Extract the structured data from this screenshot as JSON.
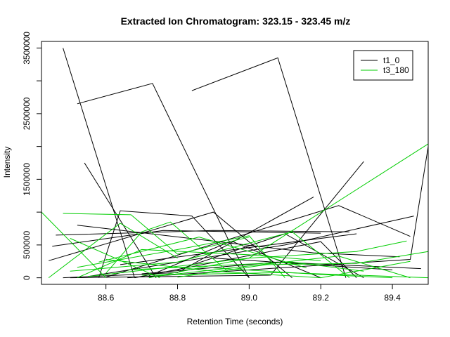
{
  "chart_data": {
    "type": "line",
    "title": "Extracted Ion Chromatogram: 323.15 - 323.45 m/z",
    "xlabel": "Retention Time (seconds)",
    "ylabel": "Intensity",
    "xlim": [
      88.42,
      89.5
    ],
    "ylim": [
      -100000,
      3600000
    ],
    "x_ticks": [
      88.6,
      88.8,
      89.0,
      89.2,
      89.4
    ],
    "x_tick_labels": [
      "88.6",
      "88.8",
      "89.0",
      "89.2",
      "89.4"
    ],
    "y_ticks": [
      0,
      500000,
      1000000,
      1500000,
      2000000,
      2500000,
      3000000,
      3500000
    ],
    "y_tick_labels": [
      "0",
      "500000",
      "",
      "1500000",
      "",
      "2500000",
      "",
      "3500000"
    ],
    "grid": false,
    "legend_position": "top-right",
    "colors": {
      "t1_0": "#000000",
      "t3_180": "#00cd00"
    },
    "series": [
      {
        "name": "t1_0",
        "segments": [
          [
            [
              88.48,
              3500000
            ],
            [
              88.68,
              0
            ]
          ],
          [
            [
              88.52,
              2650000
            ],
            [
              88.73,
              2960000
            ],
            [
              88.94,
              600000
            ],
            [
              89.0,
              0
            ]
          ],
          [
            [
              88.54,
              1750000
            ],
            [
              88.74,
              0
            ]
          ],
          [
            [
              88.84,
              2850000
            ],
            [
              89.08,
              3350000
            ],
            [
              89.27,
              0
            ]
          ],
          [
            [
              88.58,
              0
            ],
            [
              88.64,
              1020000
            ],
            [
              88.84,
              940000
            ],
            [
              89.0,
              0
            ]
          ],
          [
            [
              88.44,
              260000
            ],
            [
              88.9,
              1000000
            ],
            [
              89.12,
              0
            ]
          ],
          [
            [
              88.45,
              480000
            ],
            [
              88.76,
              720000
            ],
            [
              89.2,
              680000
            ]
          ],
          [
            [
              88.46,
              650000
            ],
            [
              88.9,
              720000
            ],
            [
              89.28,
              700000
            ]
          ],
          [
            [
              88.52,
              800000
            ],
            [
              89.18,
              380000
            ],
            [
              89.42,
              320000
            ]
          ],
          [
            [
              88.48,
              0
            ],
            [
              88.8,
              80000
            ],
            [
              89.18,
              1230000
            ]
          ],
          [
            [
              88.5,
              0
            ],
            [
              89.06,
              40000
            ],
            [
              89.32,
              1770000
            ]
          ],
          [
            [
              88.6,
              10000
            ],
            [
              89.25,
              1100000
            ],
            [
              89.45,
              630000
            ]
          ],
          [
            [
              88.68,
              0
            ],
            [
              89.2,
              550000
            ],
            [
              89.3,
              0
            ]
          ],
          [
            [
              88.72,
              30000
            ],
            [
              88.95,
              560000
            ],
            [
              89.2,
              0
            ]
          ],
          [
            [
              88.8,
              120000
            ],
            [
              89.1,
              670000
            ],
            [
              89.32,
              0
            ]
          ],
          [
            [
              88.55,
              20000
            ],
            [
              89.1,
              500000
            ],
            [
              89.46,
              940000
            ]
          ],
          [
            [
              88.64,
              200000
            ],
            [
              89.0,
              460000
            ],
            [
              89.3,
              670000
            ]
          ],
          [
            [
              88.66,
              0
            ],
            [
              89.45,
              280000
            ],
            [
              89.5,
              2000000
            ]
          ],
          [
            [
              88.9,
              300000
            ],
            [
              89.4,
              120000
            ]
          ],
          [
            [
              88.7,
              60000
            ],
            [
              89.08,
              240000
            ],
            [
              89.48,
              140000
            ]
          ]
        ]
      },
      {
        "name": "t3_180",
        "segments": [
          [
            [
              88.42,
              1000000
            ],
            [
              88.6,
              0
            ]
          ],
          [
            [
              88.48,
              980000
            ],
            [
              88.67,
              960000
            ],
            [
              88.8,
              360000
            ],
            [
              89.0,
              620000
            ]
          ],
          [
            [
              88.44,
              0
            ],
            [
              88.64,
              830000
            ],
            [
              88.8,
              300000
            ]
          ],
          [
            [
              88.5,
              600000
            ],
            [
              88.75,
              0
            ]
          ],
          [
            [
              88.52,
              160000
            ],
            [
              88.82,
              450000
            ],
            [
              89.0,
              640000
            ],
            [
              89.1,
              0
            ]
          ],
          [
            [
              88.5,
              100000
            ],
            [
              88.8,
              240000
            ],
            [
              89.12,
              700000
            ],
            [
              89.28,
              0
            ]
          ],
          [
            [
              88.52,
              0
            ],
            [
              88.7,
              430000
            ],
            [
              89.0,
              350000
            ],
            [
              89.2,
              260000
            ]
          ],
          [
            [
              88.55,
              20000
            ],
            [
              89.0,
              300000
            ],
            [
              89.5,
              2040000
            ]
          ],
          [
            [
              88.6,
              280000
            ],
            [
              88.9,
              100000
            ],
            [
              89.2,
              0
            ],
            [
              89.45,
              250000
            ]
          ],
          [
            [
              88.6,
              70000
            ],
            [
              88.7,
              700000
            ],
            [
              88.78,
              850000
            ],
            [
              88.94,
              100000
            ]
          ],
          [
            [
              88.72,
              0
            ],
            [
              89.0,
              300000
            ],
            [
              89.3,
              400000
            ],
            [
              89.44,
              560000
            ]
          ],
          [
            [
              88.8,
              10000
            ],
            [
              89.05,
              200000
            ],
            [
              89.3,
              220000
            ],
            [
              89.5,
              400000
            ]
          ],
          [
            [
              88.7,
              40000
            ],
            [
              89.1,
              80000
            ],
            [
              89.5,
              0
            ]
          ],
          [
            [
              88.9,
              150000
            ],
            [
              89.2,
              50000
            ],
            [
              89.4,
              0
            ]
          ],
          [
            [
              88.75,
              30000
            ],
            [
              89.25,
              330000
            ],
            [
              89.45,
              0
            ]
          ],
          [
            [
              88.66,
              120000
            ],
            [
              89.12,
              240000
            ],
            [
              89.32,
              100000
            ]
          ],
          [
            [
              88.58,
              240000
            ],
            [
              88.86,
              620000
            ],
            [
              89.16,
              150000
            ]
          ]
        ]
      }
    ]
  }
}
